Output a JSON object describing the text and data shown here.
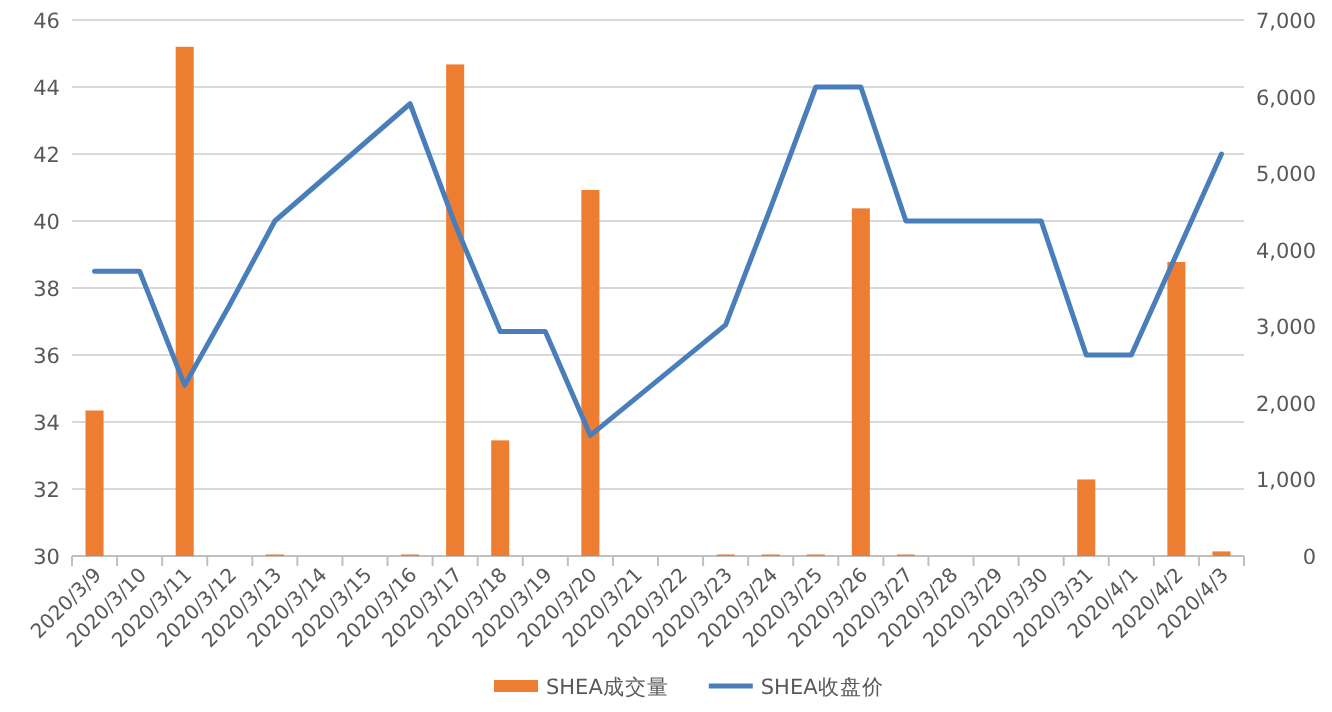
{
  "chart_data": {
    "type": "bar",
    "categories": [
      "2020/3/9",
      "2020/3/10",
      "2020/3/11",
      "2020/3/12",
      "2020/3/13",
      "2020/3/14",
      "2020/3/15",
      "2020/3/16",
      "2020/3/17",
      "2020/3/18",
      "2020/3/19",
      "2020/3/20",
      "2020/3/21",
      "2020/3/22",
      "2020/3/23",
      "2020/3/24",
      "2020/3/25",
      "2020/3/26",
      "2020/3/27",
      "2020/3/28",
      "2020/3/29",
      "2020/3/30",
      "2020/3/31",
      "2020/4/1",
      "2020/4/2",
      "2020/4/3"
    ],
    "series": [
      {
        "name": "SHEA成交量",
        "axis": "y2",
        "color": "#ed7d31",
        "values": [
          1900,
          0,
          6650,
          0,
          20,
          null,
          null,
          20,
          6420,
          1510,
          0,
          4780,
          null,
          null,
          20,
          20,
          20,
          4540,
          20,
          null,
          null,
          0,
          1000,
          0,
          3840,
          60
        ]
      },
      {
        "name": "SHEA收盘价",
        "type": "line",
        "axis": "y",
        "color": "#4a7ebb",
        "values": [
          38.5,
          38.5,
          35.1,
          37.5,
          40.0,
          null,
          null,
          43.5,
          39.9,
          36.7,
          36.7,
          33.6,
          null,
          null,
          36.9,
          40.4,
          44.0,
          44.0,
          40.0,
          null,
          null,
          40.0,
          36.0,
          36.0,
          39.0,
          42.0
        ]
      }
    ],
    "ylim": [
      30,
      46
    ],
    "yticks": [
      30,
      32,
      34,
      36,
      38,
      40,
      42,
      44,
      46
    ],
    "y2lim": [
      0,
      7000
    ],
    "y2ticks": [
      0,
      {
        "value": 1000,
        "label": "1,000"
      },
      {
        "value": 2000,
        "label": "2,000"
      },
      {
        "value": 3000,
        "label": "3,000"
      },
      {
        "value": 4000,
        "label": "4,000"
      },
      {
        "value": 5000,
        "label": "5,000"
      },
      {
        "value": 6000,
        "label": "6,000"
      },
      {
        "value": 7000,
        "label": "7,000"
      }
    ],
    "grid": "y",
    "legend": "bottom"
  }
}
